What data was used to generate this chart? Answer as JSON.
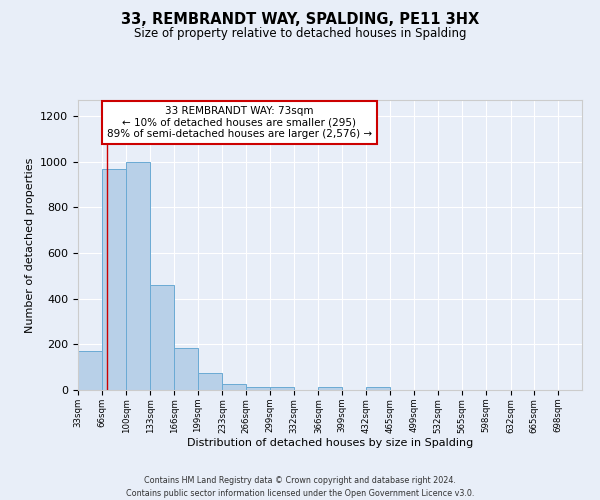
{
  "title": "33, REMBRANDT WAY, SPALDING, PE11 3HX",
  "subtitle": "Size of property relative to detached houses in Spalding",
  "xlabel": "Distribution of detached houses by size in Spalding",
  "ylabel": "Number of detached properties",
  "bar_color": "#b8d0e8",
  "bar_edge_color": "#6aaad4",
  "bin_labels": [
    "33sqm",
    "66sqm",
    "100sqm",
    "133sqm",
    "166sqm",
    "199sqm",
    "233sqm",
    "266sqm",
    "299sqm",
    "332sqm",
    "366sqm",
    "399sqm",
    "432sqm",
    "465sqm",
    "499sqm",
    "532sqm",
    "565sqm",
    "598sqm",
    "632sqm",
    "665sqm",
    "698sqm"
  ],
  "bin_edges": [
    33,
    66,
    100,
    133,
    166,
    199,
    233,
    266,
    299,
    332,
    366,
    399,
    432,
    465,
    499,
    532,
    565,
    598,
    632,
    665,
    698,
    731
  ],
  "bar_heights": [
    170,
    970,
    1000,
    460,
    185,
    75,
    25,
    15,
    15,
    0,
    15,
    0,
    15,
    0,
    0,
    0,
    0,
    0,
    0,
    0,
    0
  ],
  "ylim": [
    0,
    1270
  ],
  "yticks": [
    0,
    200,
    400,
    600,
    800,
    1000,
    1200
  ],
  "property_value": 73,
  "property_line_color": "#cc0000",
  "annotation_text_line1": "33 REMBRANDT WAY: 73sqm",
  "annotation_text_line2": "← 10% of detached houses are smaller (295)",
  "annotation_text_line3": "89% of semi-detached houses are larger (2,576) →",
  "annotation_box_facecolor": "#ffffff",
  "annotation_box_edgecolor": "#cc0000",
  "footer_line1": "Contains HM Land Registry data © Crown copyright and database right 2024.",
  "footer_line2": "Contains public sector information licensed under the Open Government Licence v3.0.",
  "background_color": "#e8eef8",
  "plot_background_color": "#e8eef8"
}
